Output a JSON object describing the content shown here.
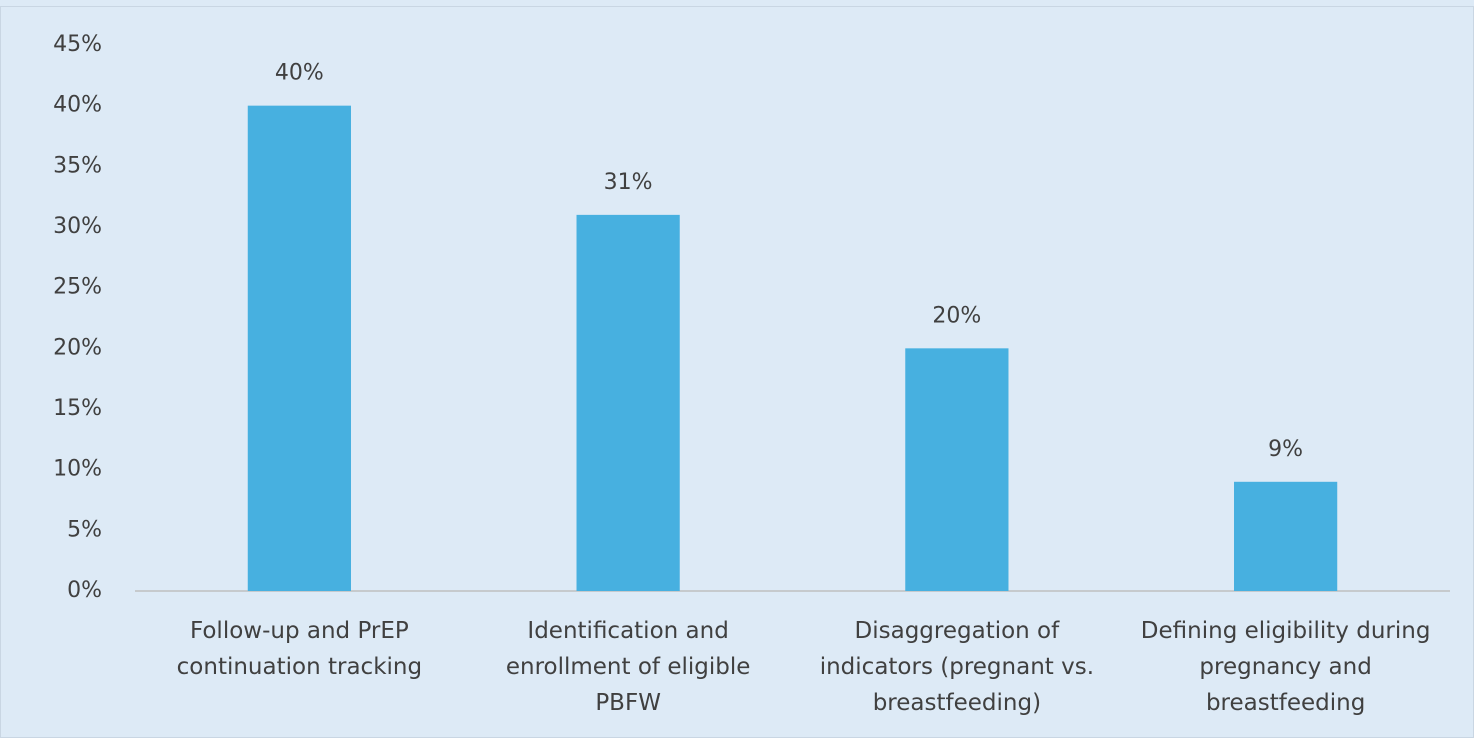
{
  "chart_data": {
    "type": "bar",
    "categories": [
      "Follow-up and PrEP continuation tracking",
      "Identification and enrollment of eligible PBFW",
      "Disaggregation of indicators (pregnant vs. breastfeeding)",
      "Defining eligibility during pregnancy and breastfeeding"
    ],
    "values": [
      40,
      31,
      20,
      9
    ],
    "value_labels": [
      "40%",
      "31%",
      "20%",
      "9%"
    ],
    "color": "#47b0e0",
    "ylim": [
      0,
      45
    ],
    "yticks": [
      {
        "value": 0,
        "label": "0%"
      },
      {
        "value": 5,
        "label": "5%"
      },
      {
        "value": 10,
        "label": "10%"
      },
      {
        "value": 15,
        "label": "15%"
      },
      {
        "value": 20,
        "label": "20%"
      },
      {
        "value": 25,
        "label": "25%"
      },
      {
        "value": 30,
        "label": "30%"
      },
      {
        "value": 35,
        "label": "35%"
      },
      {
        "value": 40,
        "label": "40%"
      },
      {
        "value": 45,
        "label": "45%"
      }
    ],
    "grid": false
  }
}
